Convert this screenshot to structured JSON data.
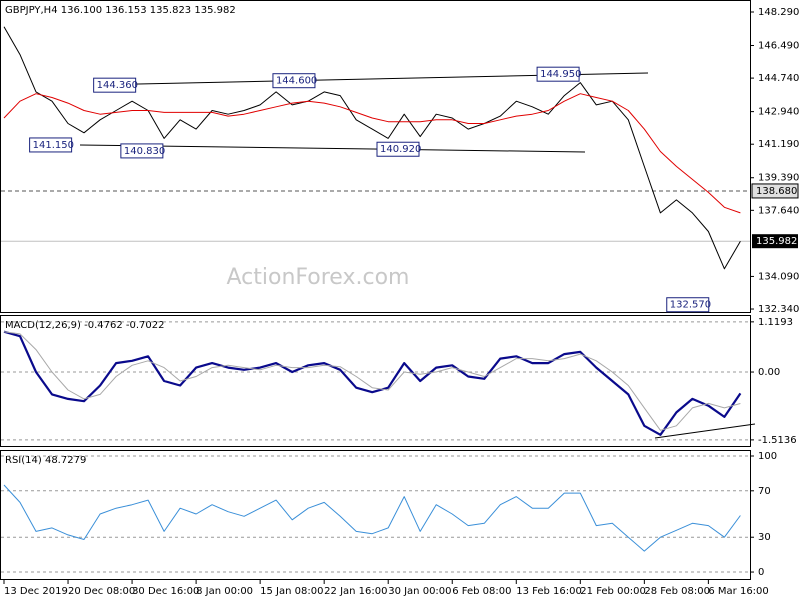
{
  "watermark": "ActionForex.com",
  "chart_data": [
    {
      "type": "line",
      "title": "GBPJPY,H4  136.100 136.153 135.823 135.982",
      "xlim": [
        -0.25,
        46.6
      ],
      "ylim": [
        132.18,
        148.88
      ],
      "yticks": [
        {
          "value": 148.29,
          "label": "148.290"
        },
        {
          "value": 146.49,
          "label": "146.490"
        },
        {
          "value": 144.74,
          "label": "144.740"
        },
        {
          "value": 142.94,
          "label": "142.940"
        },
        {
          "value": 141.19,
          "label": "141.190"
        },
        {
          "value": 139.39,
          "label": "139.390"
        },
        {
          "value": 137.64,
          "label": "137.640"
        },
        {
          "value": 134.09,
          "label": "134.090"
        },
        {
          "value": 132.34,
          "label": "132.340"
        }
      ],
      "series": [
        {
          "color": "#000000",
          "values": [
            147.5,
            146.0,
            144.0,
            143.5,
            142.3,
            141.8,
            142.5,
            143.0,
            143.5,
            143.0,
            141.5,
            142.5,
            142.0,
            143.0,
            142.8,
            143.0,
            143.3,
            144.0,
            143.3,
            143.5,
            144.0,
            143.8,
            142.5,
            142.0,
            141.5,
            142.8,
            141.6,
            142.8,
            142.6,
            142.0,
            142.3,
            142.7,
            143.5,
            143.2,
            142.8,
            143.8,
            144.5,
            143.3,
            143.5,
            142.5,
            140.0,
            137.5,
            138.2,
            137.5,
            136.5,
            134.5,
            135.982
          ]
        },
        {
          "color": "#e00000",
          "values": [
            142.6,
            143.5,
            143.9,
            143.7,
            143.4,
            143.0,
            142.8,
            142.9,
            143.0,
            143.0,
            142.9,
            142.9,
            142.9,
            142.9,
            142.7,
            142.8,
            143.0,
            143.2,
            143.4,
            143.5,
            143.4,
            143.2,
            142.9,
            142.6,
            142.4,
            142.4,
            142.4,
            142.5,
            142.5,
            142.3,
            142.3,
            142.5,
            142.7,
            142.8,
            143.0,
            143.5,
            143.9,
            143.7,
            143.5,
            143.0,
            142.0,
            140.8,
            140.0,
            139.3,
            138.6,
            137.8,
            137.5
          ]
        }
      ],
      "levels": [
        {
          "value": 138.68,
          "label": "138.680"
        }
      ],
      "current_price": 135.982,
      "annotations": [
        {
          "value": 144.36,
          "label": "144.360",
          "x": 5.6
        },
        {
          "value": 141.15,
          "label": "141.150",
          "x": 1.6
        },
        {
          "value": 140.83,
          "label": "140.830",
          "x": 7.3
        },
        {
          "value": 144.6,
          "label": "144.600",
          "x": 16.8
        },
        {
          "value": 140.92,
          "label": "140.920",
          "x": 23.3
        },
        {
          "value": 144.95,
          "label": "144.950",
          "x": 33.3
        },
        {
          "value": 132.57,
          "label": "132.570",
          "x": 41.4
        }
      ]
    },
    {
      "type": "line",
      "title": "MACD(12,26,9) -0.4762 -0.7022",
      "xlim": [
        -0.25,
        46.6
      ],
      "ylim": [
        -1.65,
        1.25
      ],
      "grid": true,
      "yticks": [
        1.1193,
        {
          "value": 0,
          "label": "0.00"
        },
        -1.5136
      ],
      "series": [
        {
          "color": "#0a0a8c",
          "values": [
            0.9,
            0.8,
            0.0,
            -0.5,
            -0.6,
            -0.65,
            -0.3,
            0.2,
            0.25,
            0.35,
            -0.2,
            -0.3,
            0.1,
            0.2,
            0.1,
            0.05,
            0.1,
            0.2,
            0.0,
            0.15,
            0.2,
            0.05,
            -0.35,
            -0.45,
            -0.35,
            0.2,
            -0.2,
            0.1,
            0.15,
            -0.1,
            -0.15,
            0.3,
            0.35,
            0.2,
            0.2,
            0.4,
            0.45,
            0.1,
            -0.2,
            -0.5,
            -1.2,
            -1.4,
            -0.9,
            -0.6,
            -0.75,
            -1.0,
            -0.4762
          ]
        },
        {
          "color": "#a8a8a8",
          "values": [
            0.9,
            0.85,
            0.5,
            0.0,
            -0.4,
            -0.6,
            -0.5,
            -0.1,
            0.15,
            0.25,
            0.1,
            -0.2,
            -0.1,
            0.1,
            0.15,
            0.1,
            0.05,
            0.15,
            0.1,
            0.1,
            0.15,
            0.12,
            -0.1,
            -0.35,
            -0.4,
            0.0,
            -0.05,
            0.0,
            0.1,
            0.0,
            -0.1,
            0.1,
            0.3,
            0.3,
            0.25,
            0.3,
            0.4,
            0.25,
            0.0,
            -0.3,
            -0.8,
            -1.3,
            -1.2,
            -0.8,
            -0.7,
            -0.8,
            -0.7022
          ]
        }
      ]
    },
    {
      "type": "line",
      "title": "RSI(14) 48.7279",
      "xlim": [
        -0.25,
        46.6
      ],
      "ylim": [
        -6,
        104.3
      ],
      "grid": true,
      "yticks": [
        100,
        70,
        30,
        0
      ],
      "xticks": [
        {
          "value": 0,
          "label": "13 Dec 2019"
        },
        {
          "value": 4,
          "label": "20 Dec 08:00"
        },
        {
          "value": 8,
          "label": "30 Dec 16:00"
        },
        {
          "value": 12,
          "label": "8 Jan 00:00"
        },
        {
          "value": 16,
          "label": "15 Jan 08:00"
        },
        {
          "value": 20,
          "label": "22 Jan 16:00"
        },
        {
          "value": 24,
          "label": "30 Jan 00:00"
        },
        {
          "value": 28,
          "label": "6 Feb 08:00"
        },
        {
          "value": 32,
          "label": "13 Feb 16:00"
        },
        {
          "value": 36,
          "label": "21 Feb 00:00"
        },
        {
          "value": 40,
          "label": "28 Feb 08:00"
        },
        {
          "value": 44,
          "label": "6 Mar 16:00"
        }
      ],
      "series": [
        {
          "color": "#3a8fd8",
          "values": [
            75,
            60,
            35,
            38,
            32,
            28,
            50,
            55,
            58,
            62,
            35,
            55,
            50,
            58,
            52,
            48,
            55,
            62,
            45,
            55,
            60,
            48,
            35,
            33,
            38,
            65,
            35,
            58,
            50,
            40,
            42,
            58,
            65,
            55,
            55,
            68,
            68,
            40,
            42,
            30,
            18,
            30,
            36,
            42,
            40,
            30,
            48.7279
          ]
        }
      ]
    }
  ]
}
